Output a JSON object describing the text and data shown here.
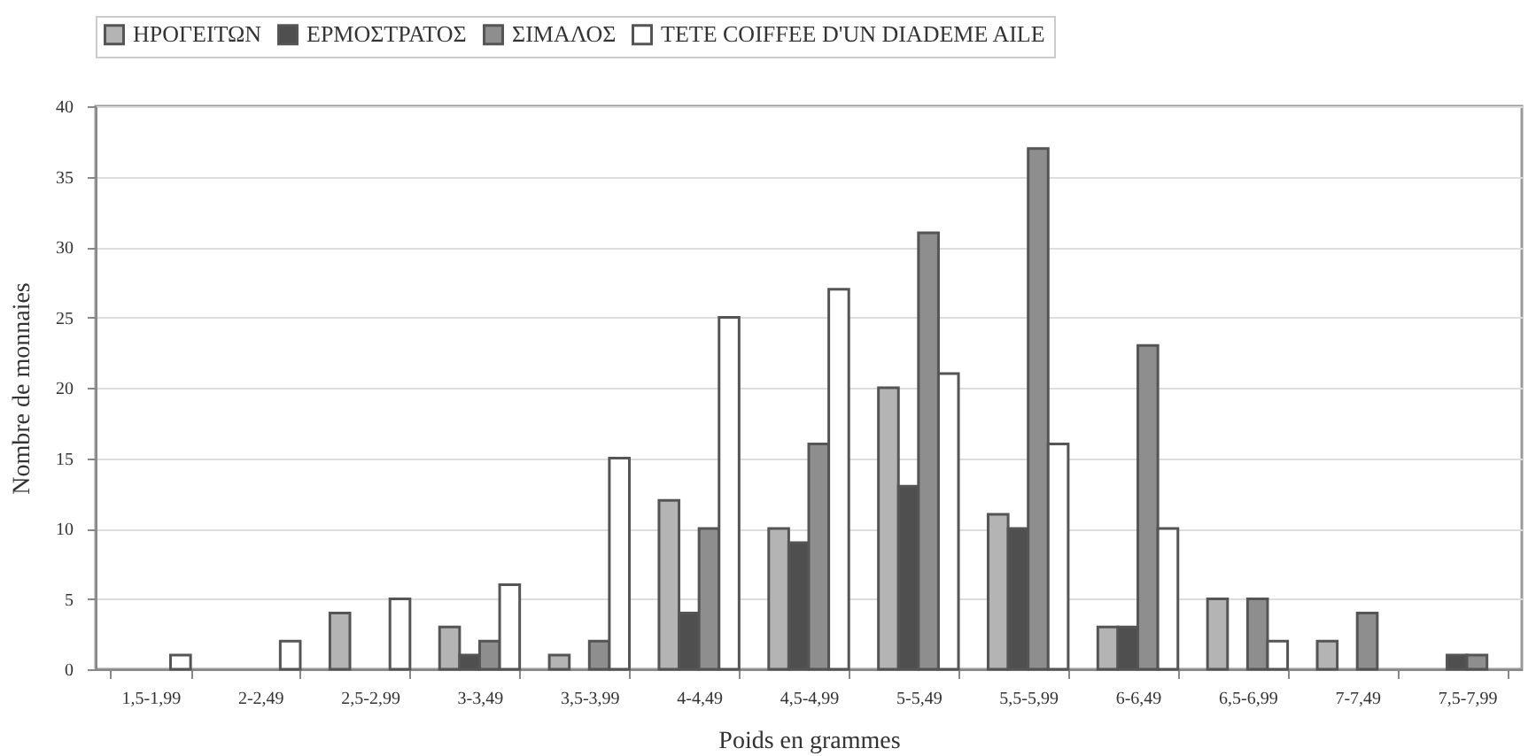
{
  "chart_data": {
    "type": "bar",
    "xlabel": "Poids en grammes",
    "ylabel": "Nombre de monnaies",
    "categories": [
      "1,5-1,99",
      "2-2,49",
      "2,5-2,99",
      "3-3,49",
      "3,5-3,99",
      "4-4,49",
      "4,5-4,99",
      "5-5,49",
      "5,5-5,99",
      "6-6,49",
      "6,5-6,99",
      "7-7,49",
      "7,5-7,99"
    ],
    "series": [
      {
        "name": "ΗΡΟΓΕΙΤΩΝ",
        "color": "#b4b4b4",
        "values": [
          null,
          null,
          4,
          3,
          1,
          12,
          10,
          20,
          11,
          3,
          5,
          2,
          null
        ]
      },
      {
        "name": "ΕΡΜΟΣΤΡΑΤΟΣ",
        "color": "#4f4f4f",
        "values": [
          null,
          null,
          null,
          1,
          null,
          4,
          9,
          13,
          10,
          3,
          null,
          null,
          1
        ]
      },
      {
        "name": "ΣΙΜΑΛΟΣ",
        "color": "#8e8e8e",
        "values": [
          null,
          null,
          null,
          2,
          2,
          10,
          16,
          31,
          37,
          23,
          5,
          4,
          1
        ]
      },
      {
        "name": "TETE COIFFEE D'UN DIADEME AILE",
        "color": "#ffffff",
        "values": [
          1,
          2,
          5,
          6,
          15,
          25,
          27,
          21,
          16,
          10,
          2,
          null,
          null
        ]
      }
    ],
    "ylim": [
      0,
      40
    ],
    "yticks": [
      0,
      5,
      10,
      15,
      20,
      25,
      30,
      35,
      40
    ],
    "grid": "y",
    "legend": "top"
  }
}
